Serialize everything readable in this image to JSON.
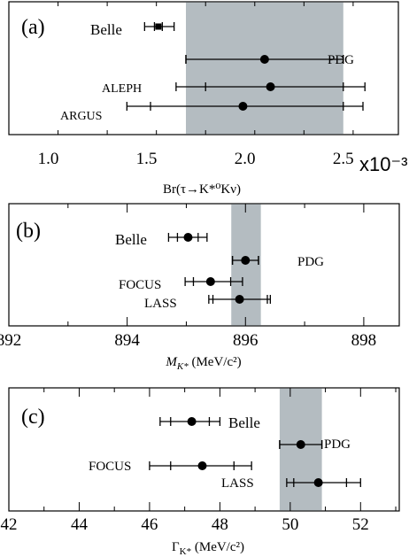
{
  "chart_data": [
    {
      "type": "scatter",
      "panel_label": "(a)",
      "xlabel": "Br(τ→K*⁰Kν)",
      "x_multiplier": "x10⁻³",
      "ticks": [
        1.0,
        1.5,
        2.0,
        2.5
      ],
      "tick_labels": [
        "1.0",
        "1.5",
        "2.0",
        "2.5"
      ],
      "xlim": [
        0.8,
        2.78
      ],
      "band": {
        "lo": 1.7,
        "hi": 2.5,
        "color": "#b4bcc1"
      },
      "grid": false,
      "legend": "none",
      "entries": [
        {
          "label": "Belle",
          "value": 1.56,
          "stat_lo": 1.54,
          "stat_hi": 1.58,
          "tot_lo": 1.49,
          "tot_hi": 1.64,
          "marker": "square"
        },
        {
          "label": "PDG",
          "value": 2.1,
          "stat_lo": 1.7,
          "stat_hi": 2.5,
          "tot_lo": 1.7,
          "tot_hi": 2.5,
          "marker": "circle"
        },
        {
          "label": "ALEPH",
          "value": 2.13,
          "stat_lo": 1.8,
          "stat_hi": 2.5,
          "tot_lo": 1.65,
          "tot_hi": 2.61,
          "marker": "circle"
        },
        {
          "label": "ARGUS",
          "value": 1.99,
          "stat_lo": 1.52,
          "stat_hi": 2.5,
          "tot_lo": 1.4,
          "tot_hi": 2.6,
          "marker": "circle"
        }
      ]
    },
    {
      "type": "scatter",
      "panel_label": "(b)",
      "xlabel": "M",
      "xlabel_sub": "K*",
      "xlabel_unit": " (MeV/c²)",
      "ticks": [
        892,
        894,
        896,
        898
      ],
      "tick_labels": [
        "892",
        "894",
        "896",
        "898"
      ],
      "xlim": [
        892,
        898.6
      ],
      "band": {
        "lo": 895.76,
        "hi": 896.26,
        "color": "#b4bcc1"
      },
      "grid": false,
      "legend": "none",
      "entries": [
        {
          "label": "Belle",
          "value": 895.03,
          "stat_lo": 894.85,
          "stat_hi": 895.2,
          "tot_lo": 894.7,
          "tot_hi": 895.35,
          "marker": "circle"
        },
        {
          "label": "PDG",
          "value": 896.0,
          "stat_lo": 895.78,
          "stat_hi": 896.22,
          "tot_lo": 895.78,
          "tot_hi": 896.22,
          "marker": "circle"
        },
        {
          "label": "FOCUS",
          "value": 895.41,
          "stat_lo": 895.12,
          "stat_hi": 895.75,
          "tot_lo": 894.98,
          "tot_hi": 895.95,
          "marker": "circle"
        },
        {
          "label": "LASS",
          "value": 895.9,
          "stat_lo": 895.45,
          "stat_hi": 896.37,
          "tot_lo": 895.38,
          "tot_hi": 896.42,
          "marker": "circle"
        }
      ]
    },
    {
      "type": "scatter",
      "panel_label": "(c)",
      "xlabel": "Γ",
      "xlabel_sub": "K*",
      "xlabel_unit": " (MeV/c²)",
      "ticks": [
        42,
        44,
        46,
        48,
        50,
        52
      ],
      "tick_labels": [
        "42",
        "44",
        "46",
        "48",
        "50",
        "52"
      ],
      "xlim": [
        42,
        53.1
      ],
      "band": {
        "lo": 49.7,
        "hi": 50.9,
        "color": "#b4bcc1"
      },
      "grid": false,
      "legend": "none",
      "entries": [
        {
          "label": "Belle",
          "value": 47.2,
          "stat_lo": 46.6,
          "stat_hi": 47.7,
          "tot_lo": 46.3,
          "tot_hi": 48.0,
          "marker": "circle"
        },
        {
          "label": "PDG",
          "value": 50.3,
          "stat_lo": 49.7,
          "stat_hi": 50.9,
          "tot_lo": 49.7,
          "tot_hi": 50.9,
          "marker": "circle"
        },
        {
          "label": "FOCUS",
          "value": 47.5,
          "stat_lo": 46.6,
          "stat_hi": 48.4,
          "tot_lo": 46.0,
          "tot_hi": 48.9,
          "marker": "circle"
        },
        {
          "label": "LASS",
          "value": 50.8,
          "stat_lo": 50.1,
          "stat_hi": 51.6,
          "tot_lo": 49.9,
          "tot_hi": 52.0,
          "marker": "circle"
        }
      ]
    }
  ]
}
